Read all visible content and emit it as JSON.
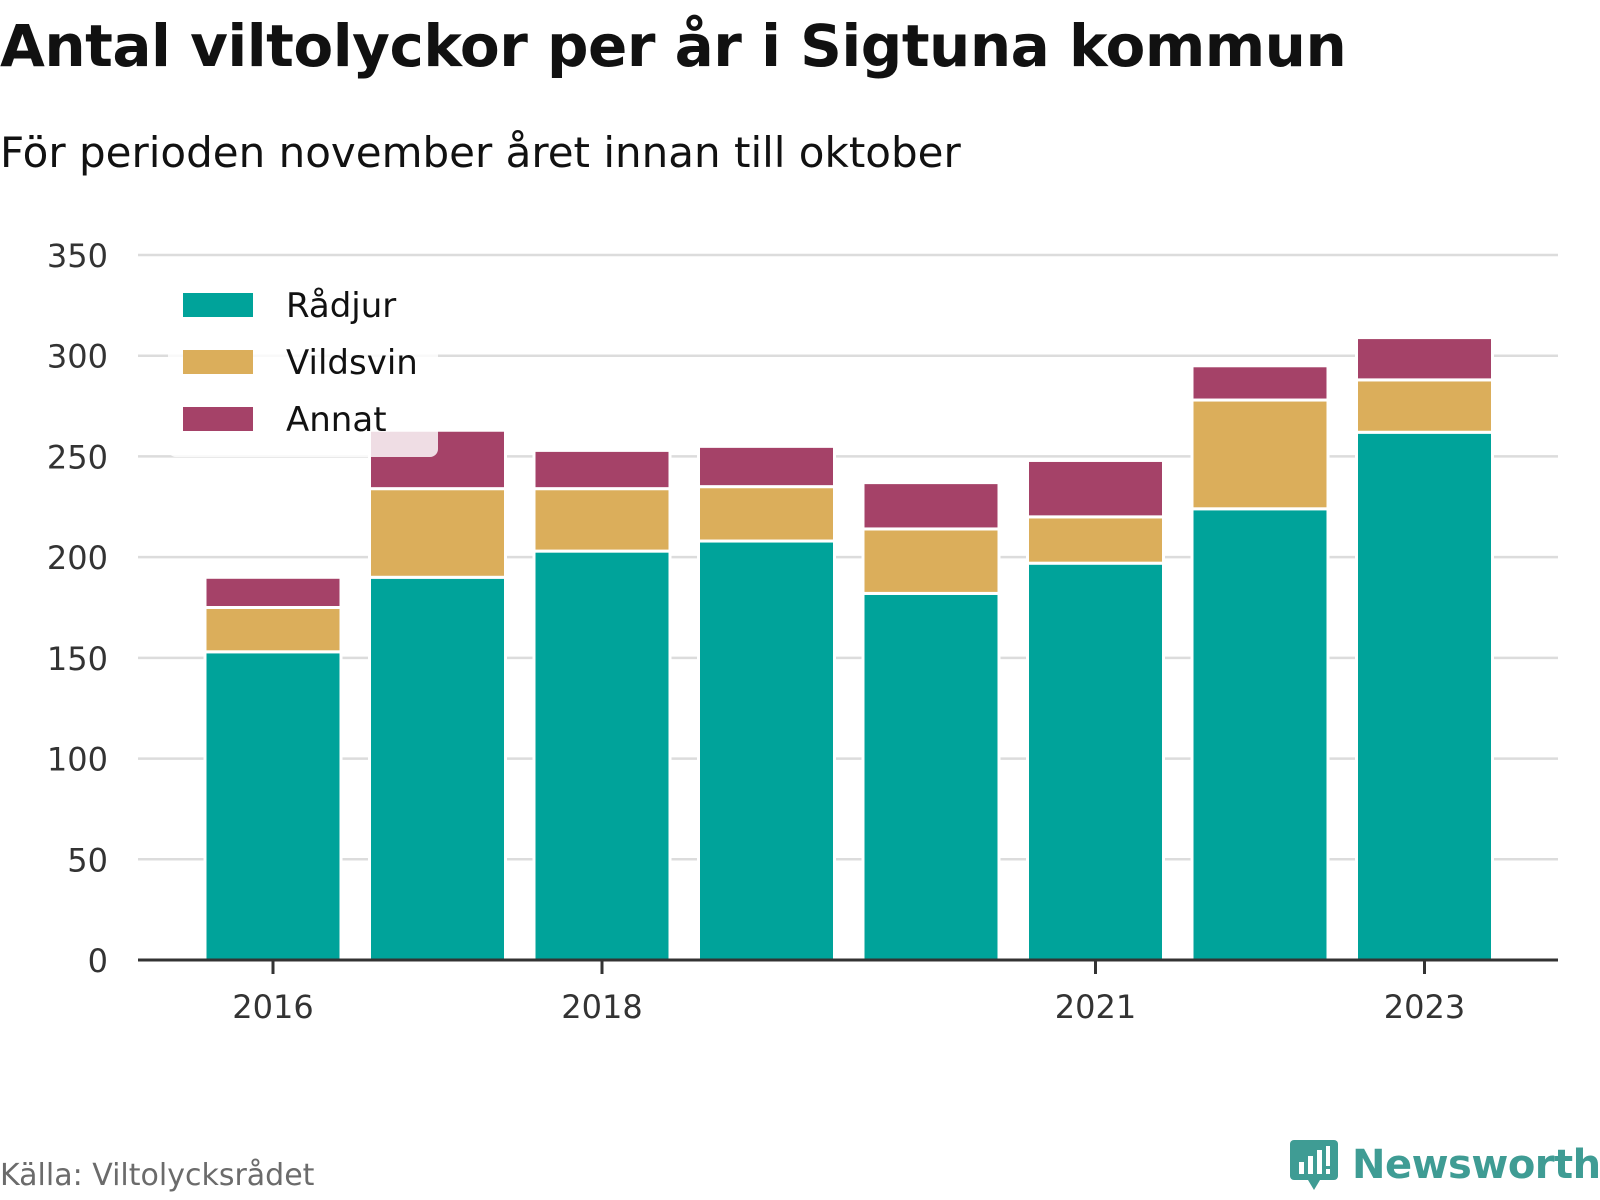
{
  "title": "Antal viltolyckor per år i Sigtuna kommun",
  "subtitle": "För perioden november året innan till oktober",
  "source": "Källa: Viltolycksrådet",
  "logo": {
    "text": "Newsworthy",
    "icon": "newsworthy-logo-icon",
    "color": "#3f9c94"
  },
  "chart_data": {
    "type": "bar",
    "stacked": true,
    "categories": [
      "2016",
      "2017",
      "2018",
      "2019",
      "2020",
      "2021",
      "2022",
      "2023"
    ],
    "x_tick_labels": [
      "2016",
      "2018",
      "2021",
      "2023"
    ],
    "series": [
      {
        "name": "Rådjur",
        "color": "#00a39a",
        "values": [
          153,
          190,
          203,
          208,
          182,
          197,
          224,
          262
        ]
      },
      {
        "name": "Vildsvin",
        "color": "#dbae5b",
        "values": [
          22,
          44,
          31,
          27,
          32,
          23,
          54,
          26
        ]
      },
      {
        "name": "Annat",
        "color": "#a54268",
        "values": [
          15,
          29,
          19,
          20,
          23,
          28,
          17,
          21
        ]
      }
    ],
    "ylim": [
      0,
      350
    ],
    "y_ticks": [
      0,
      50,
      100,
      150,
      200,
      250,
      300,
      350
    ],
    "grid": true,
    "legend_position": "top-left"
  }
}
